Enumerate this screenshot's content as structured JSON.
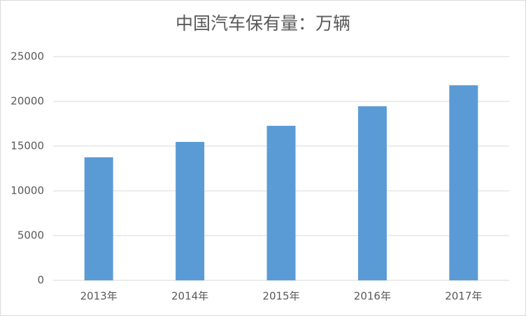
{
  "chart_data": {
    "type": "bar",
    "title": "中国汽车保有量：万辆",
    "categories": [
      "2013年",
      "2014年",
      "2015年",
      "2016年",
      "2017年"
    ],
    "values": [
      13750,
      15470,
      17270,
      19450,
      21800
    ],
    "color": "#5b9bd5",
    "ylim": [
      0,
      25000
    ],
    "yticks": [
      0,
      5000,
      10000,
      15000,
      20000,
      25000
    ],
    "grid": true
  }
}
